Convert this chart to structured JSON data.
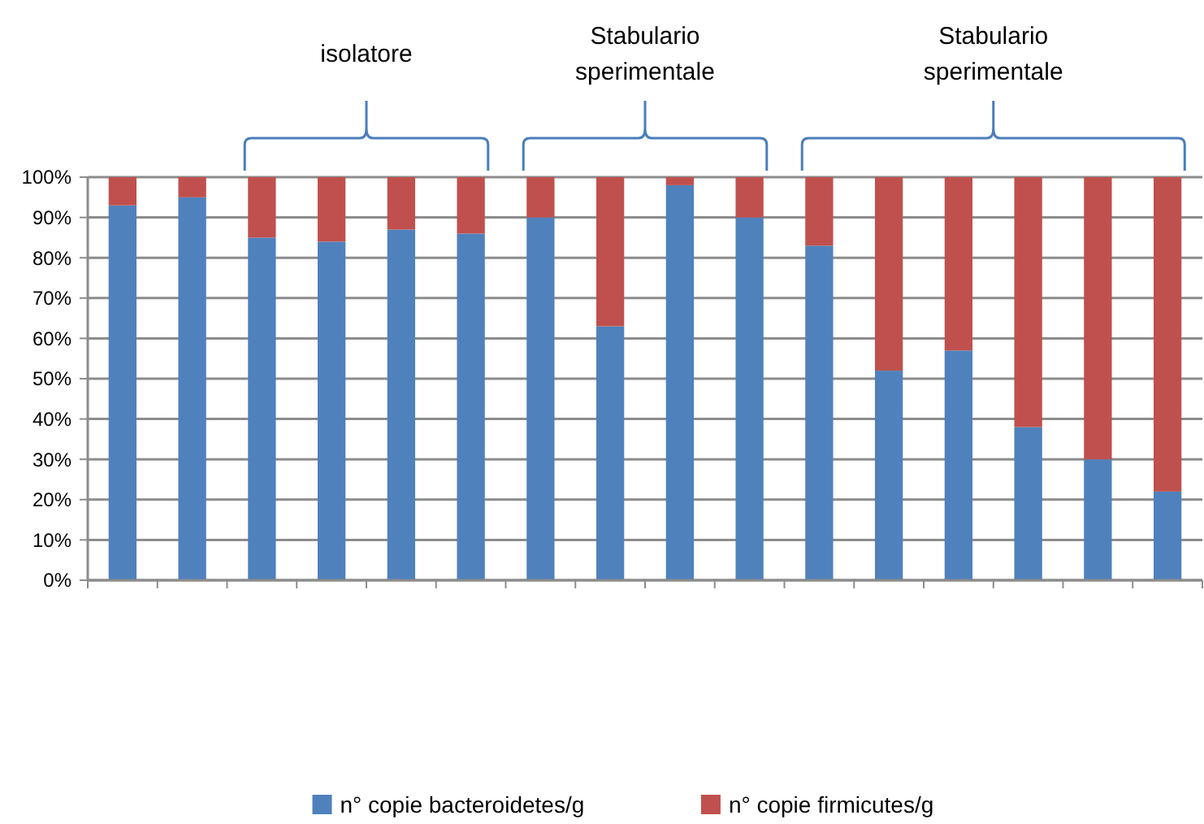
{
  "chart_data": {
    "type": "bar",
    "stacked": true,
    "categories": [
      null,
      null,
      null,
      null,
      null,
      null,
      null,
      null,
      null,
      null,
      null,
      null,
      null,
      null,
      null,
      null
    ],
    "series": [
      {
        "name": "n° copie bacteroidetes/g",
        "color": "#4f81bd",
        "values": [
          93,
          95,
          85,
          84,
          87,
          86,
          90,
          63,
          98,
          90,
          83,
          52,
          57,
          38,
          30,
          22
        ]
      },
      {
        "name": "n° copie firmicutes/g",
        "color": "#c0504d",
        "values": [
          7,
          5,
          15,
          16,
          13,
          14,
          10,
          37,
          2,
          10,
          17,
          48,
          43,
          62,
          70,
          78
        ]
      }
    ],
    "ylim": [
      0,
      100
    ],
    "yticks": [
      {
        "value": 0,
        "label": "0%"
      },
      {
        "value": 10,
        "label": "10%"
      },
      {
        "value": 20,
        "label": "20%"
      },
      {
        "value": 30,
        "label": "30%"
      },
      {
        "value": 40,
        "label": "40%"
      },
      {
        "value": 50,
        "label": "50%"
      },
      {
        "value": 60,
        "label": "60%"
      },
      {
        "value": 70,
        "label": "70%"
      },
      {
        "value": 80,
        "label": "80%"
      },
      {
        "value": 90,
        "label": "90%"
      },
      {
        "value": 100,
        "label": "100%"
      }
    ],
    "grid": "y",
    "legend": "bottom",
    "annotations": [
      "isolatore",
      "Stabulario sperimentale",
      "Stabulario sperimentale"
    ]
  }
}
